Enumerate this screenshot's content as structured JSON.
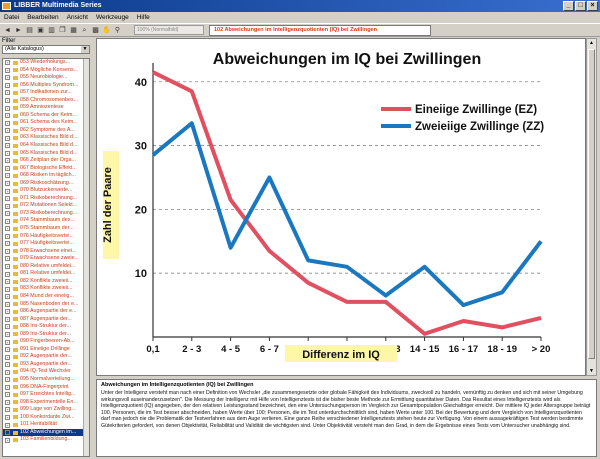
{
  "window": {
    "title": "LIBBER Multimedia Series"
  },
  "menu": [
    "Datei",
    "Bearbeiten",
    "Ansicht",
    "Werkzeuge",
    "Hilfe"
  ],
  "toolbar": {
    "zoom_text": "100% (Normalbild)",
    "path_text": "102 Abweichungen im Intelligenzquotienten (IQ) bei Zwillingen"
  },
  "sidebar": {
    "filter_label": "Filter",
    "filter_value": "(Alle Katalogus)",
    "items": [
      "053 Wiederholungs...",
      "054 Mögliche Konsens...",
      "055 Neurobiologie...",
      "056 Multiples Syndrom...",
      "057 Indikationen zur...",
      "058 Chromosomenbes...",
      "059 Amniozentese",
      "060 Schema der Keim...",
      "061 Schema des Keim...",
      "062 Symptome des A...",
      "063 Klassisches Bild d...",
      "064 Klassisches Bild d...",
      "065 Klassisches Bild d...",
      "066 Zeitplan der Orga...",
      "067 Biologische Effekt...",
      "068 Risiken im täglich...",
      "069 Risikoschätzung...",
      "070 Blutzuckerwerte...",
      "071 Risikoberechnung...",
      "072 Mutationen Selekt...",
      "073 Risikoberechnung...",
      "074 Stammbaum des...",
      "075 Stammbaum der...",
      "076 Häufigkeitsvertei...",
      "077 Häufigkeitsvertei...",
      "078 Erwachsene einei...",
      "079 Erwachsene zweie...",
      "080 Relative umfeldei...",
      "081 Relative umfeldei...",
      "082 Konflikte zweieii...",
      "083 Konflikte zweieii...",
      "084 Mund der eineiig...",
      "085 Nasenboden der e...",
      "086 Augenpartie der e...",
      "087 Augenpartie der...",
      "088 Iris-Struktur der...",
      "089 Iris-Struktur der...",
      "090 Fingerbeeren-Ab...",
      "091 Eineiige Drillinge",
      "092 Augenpartie der...",
      "093 Augenpartie der...",
      "094 IQ-Test Wechsler",
      "095 Normalverteilung...",
      "096 DNA-Fingerprint",
      "097 Erreichtes Intellig...",
      "098 Experimentelle En...",
      "099 Lage von Zwilling...",
      "100 Konkordante Zwi...",
      "101 Heritabilität",
      "102 Abweichungen im...",
      "103 Familienbildung..."
    ],
    "selected_index": 49
  },
  "chart_data": {
    "type": "line",
    "title": "Abweichungen im IQ bei Zwillingen",
    "xlabel": "Differenz  im  IQ",
    "ylabel": "Zahl  der  Paare",
    "categories": [
      "0,1",
      "2 - 3",
      "4 - 5",
      "6 - 7",
      "8 - 9",
      "10 - 11",
      "12 - 13",
      "14 - 15",
      "16 - 17",
      "18 - 19",
      "> 20"
    ],
    "ylim": [
      0,
      42
    ],
    "yticks": [
      10,
      20,
      30,
      40
    ],
    "grid": "horizontal dashed",
    "legend_position": "top-right",
    "series": [
      {
        "name": "Eineiige Zwillinge (EZ)",
        "color": "#e05060",
        "values": [
          41.5,
          38.5,
          21.5,
          13.5,
          8.5,
          5.5,
          5.5,
          0.5,
          2.5,
          1.5,
          3
        ]
      },
      {
        "name": "Zweieiige Zwillinge (ZZ)",
        "color": "#1a78c0",
        "values": [
          28.5,
          33.5,
          14,
          25,
          12,
          11,
          6.5,
          11,
          5,
          7,
          15
        ]
      }
    ]
  },
  "description": {
    "title": "Abweichungen im Intelligenzquotienten (IQ) bei Zwillingen",
    "body": "Unter der Intelligenz versteht man nach einer Definition von Wechsler „die zusammengesetzte oder globale Fähigkeit des Individuums, zweckvoll zu handeln, vernünftig zu denken und sich mit seiner Umgebung wirkungsvoll auseinanderzusetzen\". Die Messung der Intelligenz mit Hilfe von Intelligenztests ist die bisher beste Methode zur Ermittlung quantitativer Daten. Das Resultat eines Intelligenztests wird als Intelligenzquotient (IQ) angegeben, der den relativen Leistungsstand bezeichnet, den eine Untersuchungsperson im Vergleich zur Gesamtpopulation Gleichaltriger erreicht. Der mittlere IQ jeder Altersgruppe beträgt 100. Personen, die im Test besser abschneiden, haben Werte über 100; Personen, die im Test unterdurchschnittlich sind, haben Werte unter 100. Bei der Bewertung und dem Vergleich von Intelligenzquotienten darf man jedoch nie die Problematik der Testverfahren aus dem Auge verlieren. Eine ganze Reihe verschiedener Intelligenztests stehen heute zur Verfügung. Von einem aussagekräftigen Test werden bestimmte Gütekriterien gefordert, von denen Objektivität, Reliabilität und Validität die wichtigsten sind. Unter Objektivität versteht man den Grad, in dem die Ergebnisse eines Tests vom Untersucher unabhängig sind."
  }
}
